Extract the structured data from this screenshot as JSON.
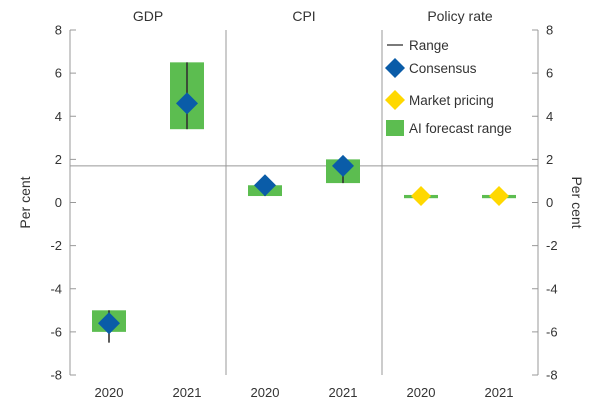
{
  "chart_data": {
    "type": "range-marker",
    "ylabel_left": "Per cent",
    "ylabel_right": "Per cent",
    "ylim": [
      -8,
      8
    ],
    "y_ticks": [
      8,
      6,
      4,
      2,
      0,
      -2,
      -4,
      -6,
      -8
    ],
    "y_tick_labels": [
      "8",
      "6",
      "4",
      "2",
      "0",
      "-2",
      "-4",
      "-6",
      "-8"
    ],
    "reference_line_y": 1.7,
    "panels": [
      {
        "title": "GDP",
        "categories": [
          "2020",
          "2021"
        ],
        "range": [
          [
            -6.5,
            -5.0
          ],
          [
            3.4,
            6.5
          ]
        ],
        "consensus": [
          -5.6,
          4.6
        ],
        "ai_range": [
          [
            -6.0,
            -5.0
          ],
          [
            3.4,
            6.5
          ]
        ],
        "market_pricing": [
          null,
          null
        ]
      },
      {
        "title": "CPI",
        "categories": [
          "2020",
          "2021"
        ],
        "range": [
          [
            0.3,
            1.0
          ],
          [
            0.9,
            2.0
          ]
        ],
        "consensus": [
          0.8,
          1.7
        ],
        "ai_range": [
          [
            0.3,
            0.8
          ],
          [
            0.9,
            2.0
          ]
        ],
        "market_pricing": [
          null,
          null
        ]
      },
      {
        "title": "Policy rate",
        "categories": [
          "2020",
          "2021"
        ],
        "range": [
          [
            0.25,
            0.35
          ],
          [
            0.2,
            0.5
          ]
        ],
        "consensus": [
          null,
          null
        ],
        "ai_range": [
          [
            0.2,
            0.35
          ],
          [
            0.2,
            0.35
          ]
        ],
        "market_pricing": [
          0.3,
          0.3
        ]
      }
    ],
    "legend": [
      {
        "label": "Range",
        "marker": "line"
      },
      {
        "label": "Consensus",
        "marker": "diamond"
      },
      {
        "label": "Market pricing",
        "marker": "diamond"
      },
      {
        "label": "AI forecast range",
        "marker": "square"
      }
    ],
    "colors": {
      "range": "#333333",
      "consensus": "#0a5ca8",
      "market_pricing": "#ffd800",
      "ai_range": "#5cbd50",
      "axis": "#999999",
      "text": "#333333"
    },
    "grid": false,
    "legend_placement": "top-right"
  }
}
